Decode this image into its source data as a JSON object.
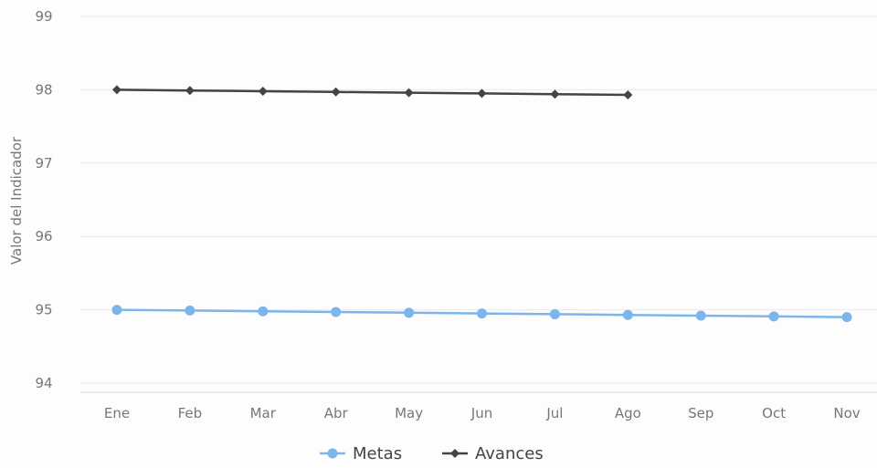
{
  "chart_data": {
    "type": "line",
    "title": "",
    "xlabel": "",
    "ylabel": "Valor del Indicador",
    "categories": [
      "Ene",
      "Feb",
      "Mar",
      "Abr",
      "May",
      "Jun",
      "Jul",
      "Ago",
      "Sep",
      "Oct",
      "Nov"
    ],
    "ylim": [
      94,
      99
    ],
    "yticks": [
      94,
      95,
      96,
      97,
      98,
      99
    ],
    "grid": true,
    "legend_position": "bottom-center",
    "series": [
      {
        "name": "Metas",
        "color": "#7cb5ec",
        "marker": "circle",
        "values": [
          95.0,
          94.99,
          94.98,
          94.97,
          94.96,
          94.95,
          94.94,
          94.93,
          94.92,
          94.91,
          94.9
        ]
      },
      {
        "name": "Avances",
        "color": "#434348",
        "marker": "diamond",
        "values": [
          98.0,
          97.99,
          97.98,
          97.97,
          97.96,
          97.95,
          97.94,
          97.93,
          null,
          null,
          null
        ]
      }
    ]
  }
}
